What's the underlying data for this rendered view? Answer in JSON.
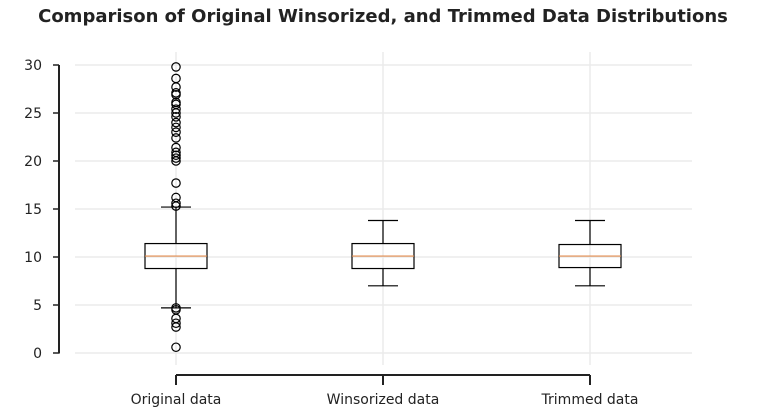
{
  "chart_data": {
    "type": "boxplot",
    "title": "Comparison of Original Winsorized, and Trimmed Data Distributions",
    "xlabel": "",
    "ylabel": "",
    "ylim": [
      -1,
      31
    ],
    "yticks": [
      0,
      5,
      10,
      15,
      20,
      25,
      30
    ],
    "grid": true,
    "categories": [
      "Original data",
      "Winsorized data",
      "Trimmed data"
    ],
    "boxes": [
      {
        "category": "Original data",
        "whisker_low": 4.7,
        "q1": 8.8,
        "median": 10.1,
        "q3": 11.4,
        "whisker_high": 15.2,
        "outliers": [
          0.6,
          2.7,
          3.1,
          3.6,
          4.5,
          4.7,
          15.3,
          15.6,
          16.2,
          17.7,
          20.0,
          20.3,
          20.6,
          20.9,
          21.4,
          22.4,
          23.0,
          23.5,
          24.0,
          24.6,
          25.0,
          25.4,
          25.9,
          26.1,
          26.9,
          27.1,
          27.7,
          28.6,
          29.8
        ]
      },
      {
        "category": "Winsorized data",
        "whisker_low": 7.0,
        "q1": 8.8,
        "median": 10.1,
        "q3": 11.4,
        "whisker_high": 13.8,
        "outliers": []
      },
      {
        "category": "Trimmed data",
        "whisker_low": 7.0,
        "q1": 8.9,
        "median": 10.1,
        "q3": 11.3,
        "whisker_high": 13.8,
        "outliers": []
      }
    ],
    "colors": {
      "box": "#000000",
      "median": "#e08a4b",
      "grid": "#ebebeb",
      "axis": "#222222"
    }
  }
}
